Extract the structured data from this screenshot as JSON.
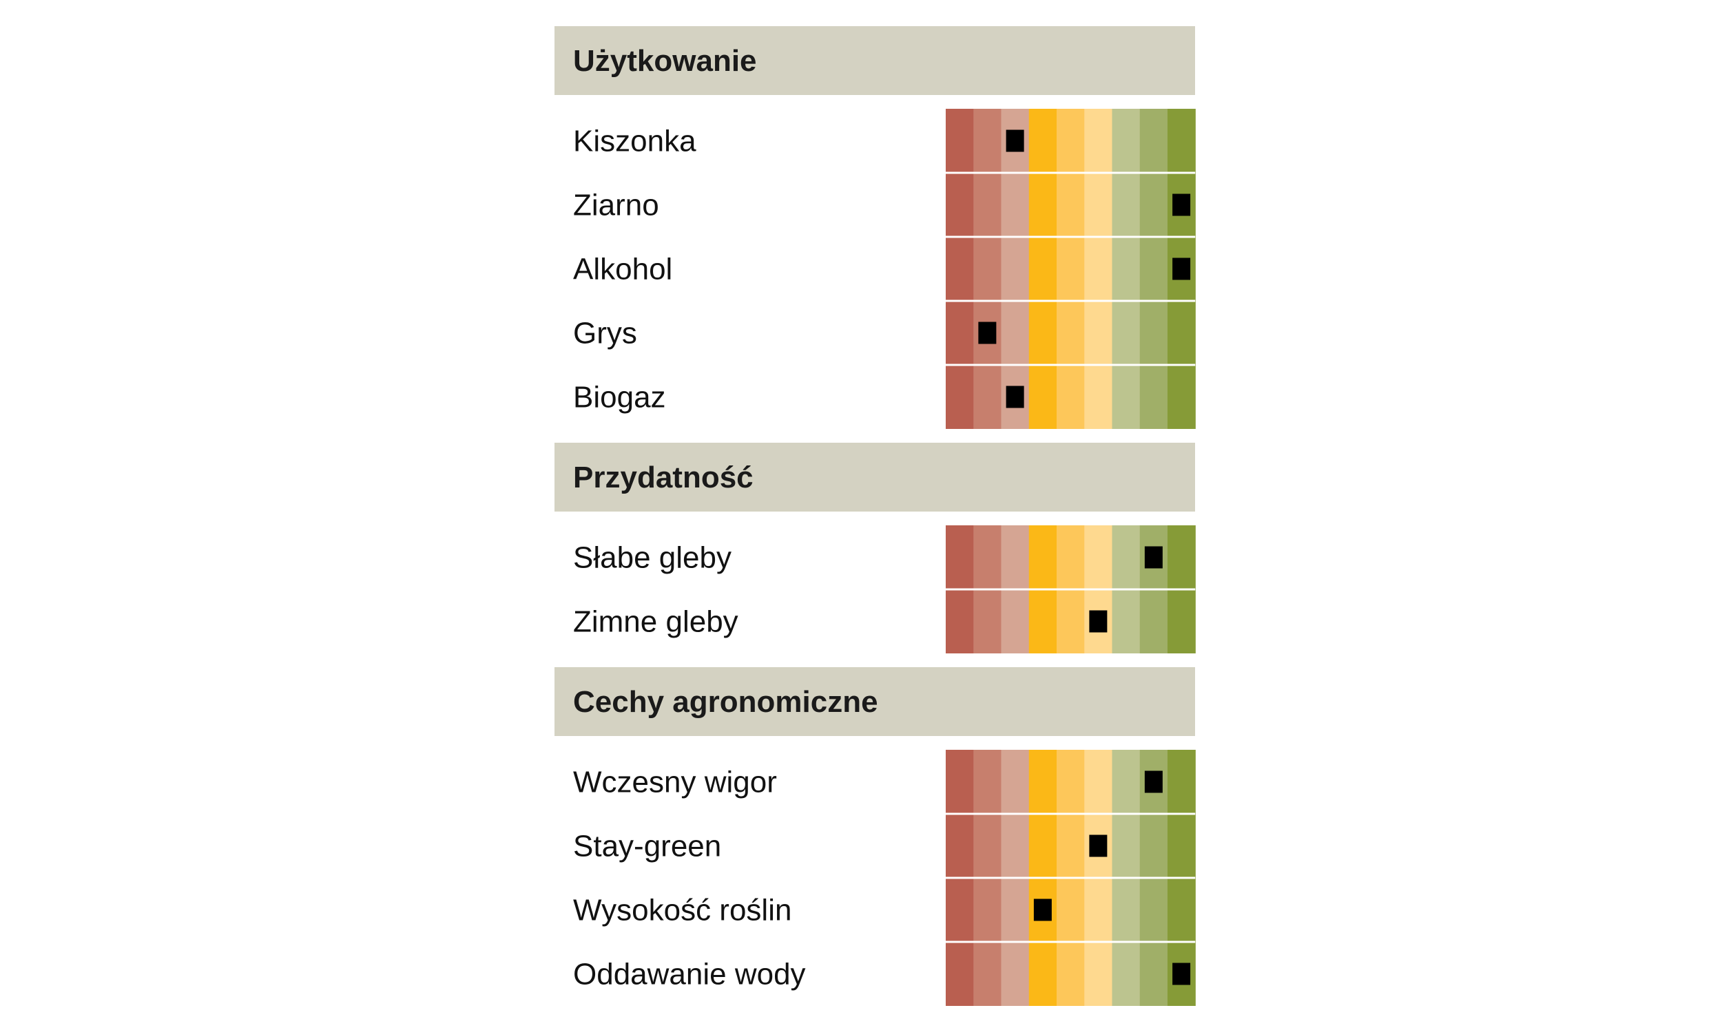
{
  "chart_data": {
    "type": "table",
    "scale_steps": 9,
    "scale_colors": [
      "#b95f50",
      "#c77f6d",
      "#d5a593",
      "#fbb817",
      "#fdc75a",
      "#fed98f",
      "#bcc48f",
      "#a0af68",
      "#869b37"
    ],
    "marker_color": "#000000",
    "section_background": "#d4d2c2",
    "sections": [
      {
        "title": "Użytkowanie",
        "rows": [
          {
            "label": "Kiszonka",
            "value": 3
          },
          {
            "label": "Ziarno",
            "value": 9
          },
          {
            "label": "Alkohol",
            "value": 9
          },
          {
            "label": "Grys",
            "value": 2
          },
          {
            "label": "Biogaz",
            "value": 3
          }
        ]
      },
      {
        "title": "Przydatność",
        "rows": [
          {
            "label": "Słabe gleby",
            "value": 8
          },
          {
            "label": "Zimne gleby",
            "value": 6
          }
        ]
      },
      {
        "title": "Cechy agronomiczne",
        "rows": [
          {
            "label": "Wczesny wigor",
            "value": 8
          },
          {
            "label": "Stay-green",
            "value": 6
          },
          {
            "label": "Wysokość roślin",
            "value": 4
          },
          {
            "label": "Oddawanie wody",
            "value": 9
          }
        ]
      }
    ]
  }
}
